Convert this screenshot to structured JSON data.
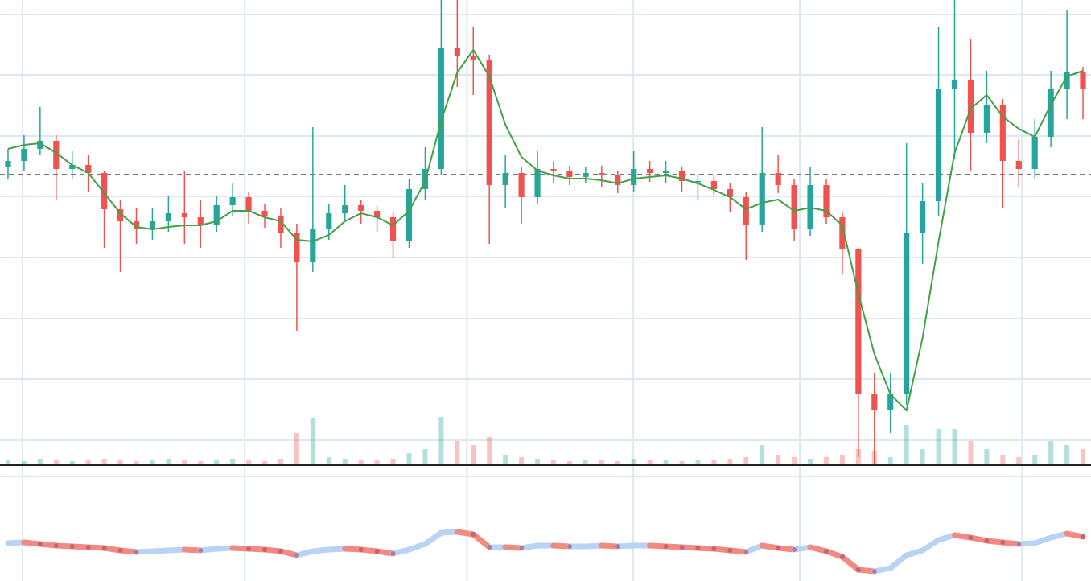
{
  "chart_data": {
    "type": "candlestick",
    "xlim": [
      -0.5,
      67.5
    ],
    "xticks": [
      0.9,
      14.75,
      28.6,
      38.97,
      49.35,
      63.2
    ],
    "ylim": [
      0,
      578
    ],
    "yticks": [
      31,
      107,
      182,
      258,
      334,
      409,
      485,
      560
    ],
    "grid": true,
    "price_line": 361,
    "up_color": "#26a69a",
    "down_color": "#ef5350",
    "ma_color": "#43a047",
    "open": [
      370,
      378,
      393,
      403,
      368,
      373,
      363,
      318,
      303,
      293,
      303,
      313,
      308,
      298,
      323,
      333,
      316,
      310,
      288,
      253,
      293,
      313,
      323,
      316,
      308,
      278,
      343,
      368,
      518,
      508,
      503,
      348,
      363,
      333,
      368,
      366,
      358,
      363,
      360,
      348,
      368,
      363,
      366,
      353,
      353,
      343,
      333,
      298,
      363,
      348,
      293,
      348,
      308,
      268,
      88,
      68,
      88,
      288,
      328,
      468,
      478,
      413,
      448,
      378,
      368,
      408,
      468,
      488
    ],
    "high": [
      393,
      410,
      445,
      410,
      390,
      385,
      365,
      330,
      320,
      320,
      335,
      365,
      330,
      335,
      350,
      340,
      325,
      320,
      300,
      420,
      325,
      348,
      330,
      322,
      315,
      355,
      395,
      578,
      578,
      545,
      510,
      385,
      370,
      390,
      378,
      372,
      370,
      372,
      365,
      390,
      378,
      378,
      370,
      362,
      360,
      350,
      340,
      420,
      385,
      355,
      370,
      355,
      315,
      270,
      115,
      115,
      400,
      350,
      545,
      578,
      530,
      490,
      455,
      405,
      430,
      490,
      565,
      495
    ],
    "low": [
      355,
      365,
      385,
      330,
      355,
      340,
      270,
      240,
      275,
      280,
      290,
      275,
      270,
      290,
      310,
      300,
      295,
      270,
      167,
      240,
      280,
      305,
      300,
      290,
      258,
      270,
      330,
      360,
      470,
      460,
      275,
      320,
      300,
      325,
      350,
      348,
      350,
      345,
      338,
      340,
      352,
      350,
      340,
      330,
      335,
      315,
      255,
      290,
      338,
      278,
      285,
      300,
      238,
      10,
      0,
      40,
      75,
      250,
      310,
      380,
      365,
      400,
      320,
      345,
      355,
      395,
      430,
      430
    ],
    "close": [
      378,
      393,
      403,
      368,
      373,
      363,
      318,
      303,
      293,
      303,
      313,
      308,
      298,
      323,
      333,
      316,
      310,
      288,
      253,
      293,
      313,
      323,
      316,
      308,
      278,
      343,
      368,
      518,
      508,
      503,
      348,
      363,
      333,
      368,
      366,
      358,
      363,
      360,
      348,
      368,
      363,
      366,
      353,
      353,
      343,
      333,
      298,
      363,
      348,
      293,
      348,
      308,
      268,
      88,
      68,
      88,
      288,
      328,
      468,
      478,
      413,
      448,
      378,
      368,
      408,
      468,
      488,
      468
    ],
    "volume": [
      6,
      5,
      7,
      6,
      5,
      6,
      8,
      6,
      5,
      6,
      7,
      6,
      5,
      6,
      7,
      6,
      5,
      8,
      40,
      58,
      10,
      7,
      6,
      6,
      8,
      15,
      20,
      60,
      30,
      25,
      35,
      12,
      10,
      8,
      6,
      5,
      6,
      6,
      5,
      8,
      6,
      6,
      5,
      6,
      6,
      7,
      10,
      25,
      12,
      10,
      8,
      10,
      12,
      20,
      18,
      10,
      50,
      20,
      45,
      45,
      30,
      20,
      12,
      10,
      12,
      30,
      25,
      20
    ],
    "ma": [
      393,
      398,
      400,
      388,
      373,
      363,
      338,
      313,
      296,
      293,
      296,
      298,
      298,
      303,
      316,
      316,
      308,
      303,
      280,
      278,
      286,
      303,
      313,
      308,
      298,
      316,
      353,
      428,
      488,
      516,
      483,
      423,
      383,
      366,
      360,
      356,
      356,
      354,
      350,
      356,
      358,
      360,
      356,
      350,
      342,
      333,
      318,
      326,
      330,
      316,
      320,
      316,
      298,
      213,
      138,
      88,
      68,
      158,
      278,
      388,
      443,
      460,
      433,
      418,
      408,
      448,
      483,
      490
    ],
    "indicator": {
      "ylim": [
        0,
        130
      ],
      "up_color": "#b8d3f3",
      "down_color": "#f28a82",
      "dot_color": "#b0566a",
      "values": [
        47,
        48,
        46,
        44,
        43,
        42,
        41,
        38,
        36,
        37,
        38,
        39,
        38,
        40,
        41,
        40,
        39,
        37,
        32,
        37,
        39,
        40,
        39,
        37,
        34,
        39,
        46,
        60,
        61,
        58,
        42,
        42,
        41,
        44,
        44,
        43,
        43,
        44,
        43,
        44,
        44,
        43,
        42,
        41,
        40,
        38,
        36,
        44,
        41,
        39,
        42,
        37,
        30,
        14,
        12,
        16,
        32,
        38,
        51,
        57,
        54,
        50,
        48,
        46,
        47,
        54,
        59,
        55
      ]
    }
  }
}
